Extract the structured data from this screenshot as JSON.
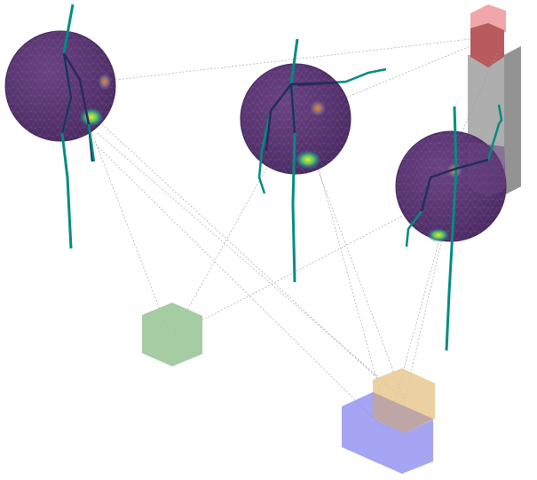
{
  "scene": {
    "background": "#ffffff",
    "colors": {
      "sphere_fill": "#5a3372",
      "sphere_stroke": "#3f2356",
      "mesh": "#8a6aa0",
      "hotspot_yellow": "#e6f025",
      "hotspot_green": "#27a77a",
      "hotspot_orange": "#d98a3a",
      "fiber": "#008c82",
      "fiber_inner": "#2a2a5e",
      "link_line": "#9a9a9a",
      "hex_green": "#9cc79a",
      "hex_blue": "#8f8ff0",
      "hex_orange": "#e8c890",
      "pillar": "#a0a0a0",
      "pillar_top_light": "#f0a6aa",
      "pillar_top_dark": "#b85a5e"
    }
  }
}
